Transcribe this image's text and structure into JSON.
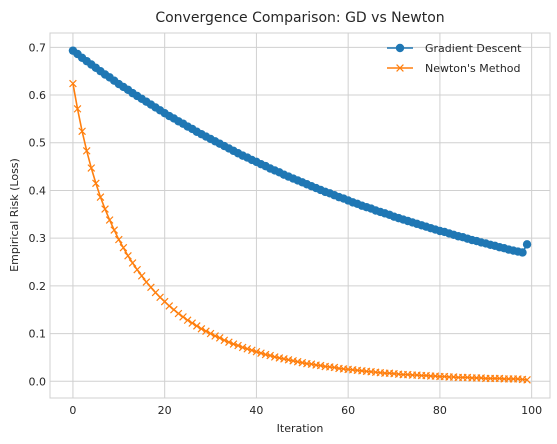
{
  "chart_data": {
    "type": "line",
    "title": "Convergence Comparison: GD vs Newton",
    "xlabel": "Iteration",
    "ylabel": "Empirical Risk (Loss)",
    "xlim": [
      -5,
      104
    ],
    "ylim": [
      -0.035,
      0.73
    ],
    "x_ticks": [
      0,
      20,
      40,
      60,
      80,
      100
    ],
    "y_ticks": [
      0.0,
      0.1,
      0.2,
      0.3,
      0.4,
      0.5,
      0.6,
      0.7
    ],
    "x_tick_labels": [
      "0",
      "20",
      "40",
      "60",
      "80",
      "100"
    ],
    "y_tick_labels": [
      "0.0",
      "0.1",
      "0.2",
      "0.3",
      "0.4",
      "0.5",
      "0.6",
      "0.7"
    ],
    "grid": true,
    "legend_position": "top-right",
    "x_start": 0,
    "x_end": 99,
    "series": [
      {
        "name": "Gradient Descent",
        "color": "#1f77b4",
        "marker": "circle",
        "values": [
          0.693,
          0.686,
          0.678,
          0.671,
          0.664,
          0.657,
          0.65,
          0.643,
          0.637,
          0.63,
          0.623,
          0.617,
          0.611,
          0.604,
          0.598,
          0.592,
          0.586,
          0.58,
          0.574,
          0.568,
          0.562,
          0.556,
          0.551,
          0.545,
          0.54,
          0.534,
          0.529,
          0.523,
          0.518,
          0.513,
          0.508,
          0.503,
          0.498,
          0.493,
          0.488,
          0.483,
          0.478,
          0.473,
          0.469,
          0.464,
          0.46,
          0.455,
          0.451,
          0.446,
          0.442,
          0.438,
          0.433,
          0.429,
          0.425,
          0.421,
          0.417,
          0.413,
          0.409,
          0.405,
          0.401,
          0.397,
          0.394,
          0.39,
          0.386,
          0.383,
          0.379,
          0.375,
          0.372,
          0.368,
          0.365,
          0.362,
          0.358,
          0.355,
          0.352,
          0.349,
          0.345,
          0.342,
          0.339,
          0.336,
          0.333,
          0.33,
          0.327,
          0.324,
          0.321,
          0.318,
          0.315,
          0.313,
          0.31,
          0.307,
          0.304,
          0.302,
          0.299,
          0.296,
          0.294,
          0.291,
          0.289,
          0.286,
          0.284,
          0.281,
          0.279,
          0.276,
          0.274,
          0.272,
          0.27,
          0.287
        ]
      },
      {
        "name": "Newton's Method",
        "color": "#ff7f0e",
        "marker": "x",
        "values": [
          0.624,
          0.571,
          0.524,
          0.483,
          0.447,
          0.415,
          0.386,
          0.361,
          0.338,
          0.317,
          0.297,
          0.28,
          0.263,
          0.248,
          0.234,
          0.221,
          0.208,
          0.197,
          0.186,
          0.176,
          0.167,
          0.158,
          0.15,
          0.142,
          0.135,
          0.128,
          0.122,
          0.116,
          0.11,
          0.105,
          0.1,
          0.095,
          0.091,
          0.086,
          0.082,
          0.078,
          0.075,
          0.071,
          0.068,
          0.065,
          0.062,
          0.059,
          0.056,
          0.054,
          0.051,
          0.049,
          0.047,
          0.045,
          0.043,
          0.041,
          0.039,
          0.037,
          0.036,
          0.034,
          0.033,
          0.031,
          0.03,
          0.029,
          0.027,
          0.026,
          0.025,
          0.024,
          0.023,
          0.022,
          0.021,
          0.02,
          0.019,
          0.018,
          0.017,
          0.017,
          0.016,
          0.015,
          0.014,
          0.014,
          0.013,
          0.013,
          0.012,
          0.012,
          0.011,
          0.011,
          0.01,
          0.01,
          0.009,
          0.009,
          0.008,
          0.008,
          0.008,
          0.007,
          0.007,
          0.007,
          0.006,
          0.006,
          0.006,
          0.006,
          0.005,
          0.005,
          0.005,
          0.005,
          0.004,
          0.003
        ]
      }
    ]
  }
}
